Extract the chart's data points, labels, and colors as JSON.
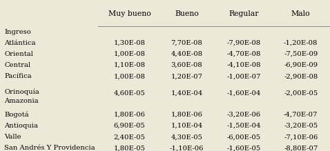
{
  "columns": [
    "Muy bueno",
    "Bueno",
    "Regular",
    "Malo"
  ],
  "section_label": "Ingreso",
  "rows": [
    {
      "label": "Atlántica",
      "values": [
        "1,30E-08",
        "7,70E-08",
        "-7,90E-08",
        "-1,20E-08"
      ],
      "multiline": false
    },
    {
      "label": "Oriental",
      "values": [
        "1,00E-08",
        "4,40E-08",
        "-4,70E-08",
        "-7,50E-09"
      ],
      "multiline": false
    },
    {
      "label": "Central",
      "values": [
        "1,10E-08",
        "3,60E-08",
        "-4,10E-08",
        "-6,90E-09"
      ],
      "multiline": false
    },
    {
      "label": "Pacífica",
      "values": [
        "1,00E-08",
        "1,20E-07",
        "-1,00E-07",
        "-2,90E-08"
      ],
      "multiline": false
    },
    {
      "label": "",
      "values": [
        "",
        "",
        "",
        ""
      ],
      "multiline": false
    },
    {
      "label": "Orinoquía",
      "label2": "Amazonia",
      "values": [
        "4,60E-05",
        "1,40E-04",
        "-1,60E-04",
        "-2,00E-05"
      ],
      "multiline": true
    },
    {
      "label": "",
      "values": [
        "",
        "",
        "",
        ""
      ],
      "multiline": false
    },
    {
      "label": "Bogotá",
      "values": [
        "1,80E-06",
        "1,80E-06",
        "-3,20E-06",
        "-4,70E-07"
      ],
      "multiline": false
    },
    {
      "label": "Antioquia",
      "values": [
        "6,90E-05",
        "1,10E-04",
        "-1,50E-04",
        "-3,20E-05"
      ],
      "multiline": false
    },
    {
      "label": "Valle",
      "values": [
        "2,40E-05",
        "4,30E-05",
        "-6,00E-05",
        "-7,10E-06"
      ],
      "multiline": false
    },
    {
      "label": "San Andrés Y Providencia",
      "values": [
        "1,80E-05",
        "-1,10E-06",
        "-1,60E-05",
        "-8,80E-07"
      ],
      "multiline": false
    }
  ],
  "background_color": "#ede8d8",
  "header_line_color": "#888888",
  "font_size": 7.2,
  "header_font_size": 7.8
}
